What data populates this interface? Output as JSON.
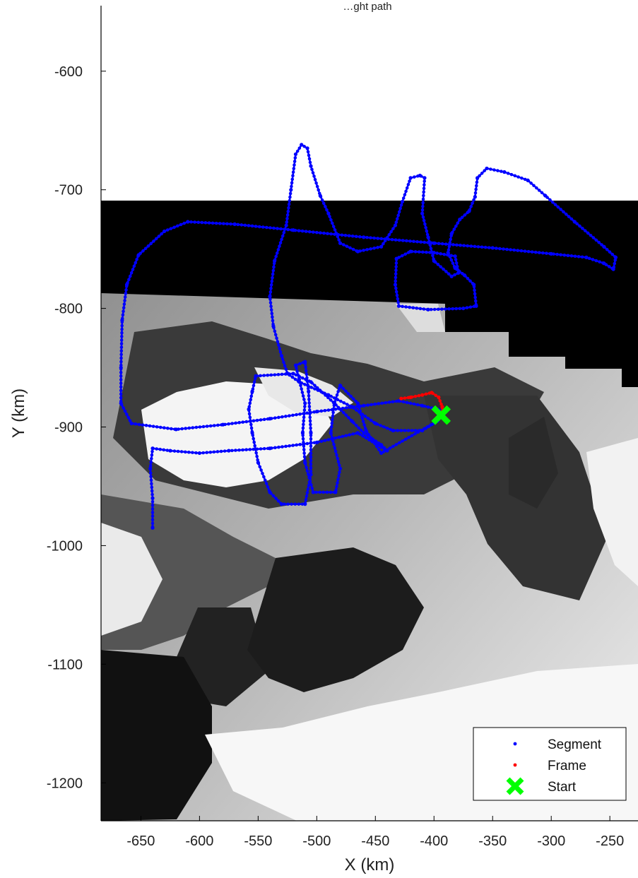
{
  "chart_data": {
    "type": "scatter",
    "title": "…ght path",
    "xlabel": "X (km)",
    "ylabel": "Y (km)",
    "xlim": [
      -684,
      -226
    ],
    "ylim": [
      -1232,
      -540
    ],
    "y_reversed": true,
    "grid": false,
    "background": "grayscale satellite mosaic with black no-data block",
    "x_ticks": [
      -650,
      -600,
      -550,
      -500,
      -450,
      -400,
      -350,
      -300,
      -250
    ],
    "y_ticks": [
      -600,
      -700,
      -800,
      -900,
      -1000,
      -1100,
      -1200
    ],
    "x_tick_labels": [
      "-650",
      "-600",
      "-550",
      "-500",
      "-450",
      "-400",
      "-350",
      "-300",
      "-250"
    ],
    "y_tick_labels": [
      "-600",
      "-700",
      "-800",
      "-900",
      "-1000",
      "-1100",
      "-1200"
    ],
    "legend": {
      "position": "bottom-right",
      "entries": [
        "Segment",
        "Frame",
        "Start"
      ]
    },
    "series": [
      {
        "name": "Segment",
        "color": "#0000ff",
        "marker": "dot",
        "points": [
          [
            -393,
            -886
          ],
          [
            -410,
            -882
          ],
          [
            -430,
            -878
          ],
          [
            -460,
            -882
          ],
          [
            -500,
            -887
          ],
          [
            -540,
            -893
          ],
          [
            -580,
            -898
          ],
          [
            -620,
            -902
          ],
          [
            -658,
            -897
          ],
          [
            -667,
            -880
          ],
          [
            -667,
            -850
          ],
          [
            -666,
            -810
          ],
          [
            -662,
            -780
          ],
          [
            -652,
            -755
          ],
          [
            -630,
            -735
          ],
          [
            -610,
            -727
          ],
          [
            -570,
            -729
          ],
          [
            -520,
            -734
          ],
          [
            -460,
            -740
          ],
          [
            -400,
            -745
          ],
          [
            -350,
            -749
          ],
          [
            -300,
            -754
          ],
          [
            -270,
            -757
          ],
          [
            -255,
            -762
          ],
          [
            -247,
            -767
          ],
          [
            -245,
            -757
          ],
          [
            -255,
            -748
          ],
          [
            -280,
            -727
          ],
          [
            -305,
            -705
          ],
          [
            -320,
            -692
          ],
          [
            -340,
            -685
          ],
          [
            -355,
            -682
          ],
          [
            -363,
            -690
          ],
          [
            -365,
            -706
          ],
          [
            -370,
            -718
          ],
          [
            -378,
            -725
          ],
          [
            -385,
            -737
          ],
          [
            -388,
            -753
          ],
          [
            -382,
            -766
          ],
          [
            -374,
            -772
          ],
          [
            -366,
            -780
          ],
          [
            -364,
            -798
          ],
          [
            -375,
            -800
          ],
          [
            -405,
            -801
          ],
          [
            -430,
            -798
          ],
          [
            -433,
            -780
          ],
          [
            -432,
            -758
          ],
          [
            -420,
            -752
          ],
          [
            -400,
            -753
          ],
          [
            -382,
            -756
          ],
          [
            -379,
            -770
          ],
          [
            -385,
            -773
          ],
          [
            -400,
            -760
          ],
          [
            -405,
            -740
          ],
          [
            -410,
            -720
          ],
          [
            -408,
            -690
          ],
          [
            -412,
            -688
          ],
          [
            -420,
            -690
          ],
          [
            -427,
            -710
          ],
          [
            -433,
            -730
          ],
          [
            -445,
            -748
          ],
          [
            -465,
            -752
          ],
          [
            -480,
            -745
          ],
          [
            -490,
            -720
          ],
          [
            -497,
            -705
          ],
          [
            -505,
            -680
          ],
          [
            -508,
            -665
          ],
          [
            -513,
            -662
          ],
          [
            -518,
            -670
          ],
          [
            -522,
            -700
          ],
          [
            -526,
            -730
          ],
          [
            -536,
            -760
          ],
          [
            -540,
            -790
          ],
          [
            -537,
            -815
          ],
          [
            -530,
            -840
          ],
          [
            -525,
            -855
          ],
          [
            -515,
            -862
          ],
          [
            -490,
            -873
          ],
          [
            -470,
            -883
          ],
          [
            -450,
            -897
          ],
          [
            -435,
            -903
          ],
          [
            -410,
            -903
          ],
          [
            -397,
            -895
          ],
          [
            -445,
            -922
          ],
          [
            -458,
            -903
          ],
          [
            -465,
            -880
          ],
          [
            -480,
            -865
          ],
          [
            -485,
            -880
          ],
          [
            -488,
            -905
          ],
          [
            -480,
            -935
          ],
          [
            -484,
            -955
          ],
          [
            -503,
            -955
          ],
          [
            -510,
            -930
          ],
          [
            -512,
            -905
          ],
          [
            -510,
            -880
          ],
          [
            -515,
            -860
          ],
          [
            -518,
            -848
          ],
          [
            -510,
            -845
          ],
          [
            -507,
            -870
          ],
          [
            -505,
            -905
          ],
          [
            -505,
            -940
          ],
          [
            -510,
            -965
          ],
          [
            -530,
            -965
          ],
          [
            -540,
            -955
          ],
          [
            -550,
            -930
          ],
          [
            -555,
            -905
          ],
          [
            -558,
            -885
          ],
          [
            -555,
            -870
          ],
          [
            -552,
            -857
          ],
          [
            -520,
            -855
          ],
          [
            -505,
            -862
          ],
          [
            -485,
            -880
          ],
          [
            -470,
            -895
          ],
          [
            -460,
            -905
          ],
          [
            -445,
            -915
          ],
          [
            -440,
            -920
          ],
          [
            -465,
            -905
          ],
          [
            -500,
            -913
          ],
          [
            -540,
            -918
          ],
          [
            -575,
            -920
          ],
          [
            -600,
            -922
          ],
          [
            -625,
            -920
          ],
          [
            -640,
            -918
          ],
          [
            -642,
            -935
          ],
          [
            -640,
            -960
          ],
          [
            -640,
            -985
          ]
        ]
      },
      {
        "name": "Frame",
        "color": "#ff0000",
        "marker": "dot",
        "points": [
          [
            -428,
            -876
          ],
          [
            -420,
            -875
          ],
          [
            -410,
            -873
          ],
          [
            -402,
            -871
          ],
          [
            -396,
            -875
          ],
          [
            -393,
            -883
          ],
          [
            -393,
            -888
          ]
        ]
      },
      {
        "name": "Start",
        "color": "#00ff00",
        "marker": "x",
        "points": [
          [
            -394,
            -890
          ]
        ]
      }
    ]
  }
}
